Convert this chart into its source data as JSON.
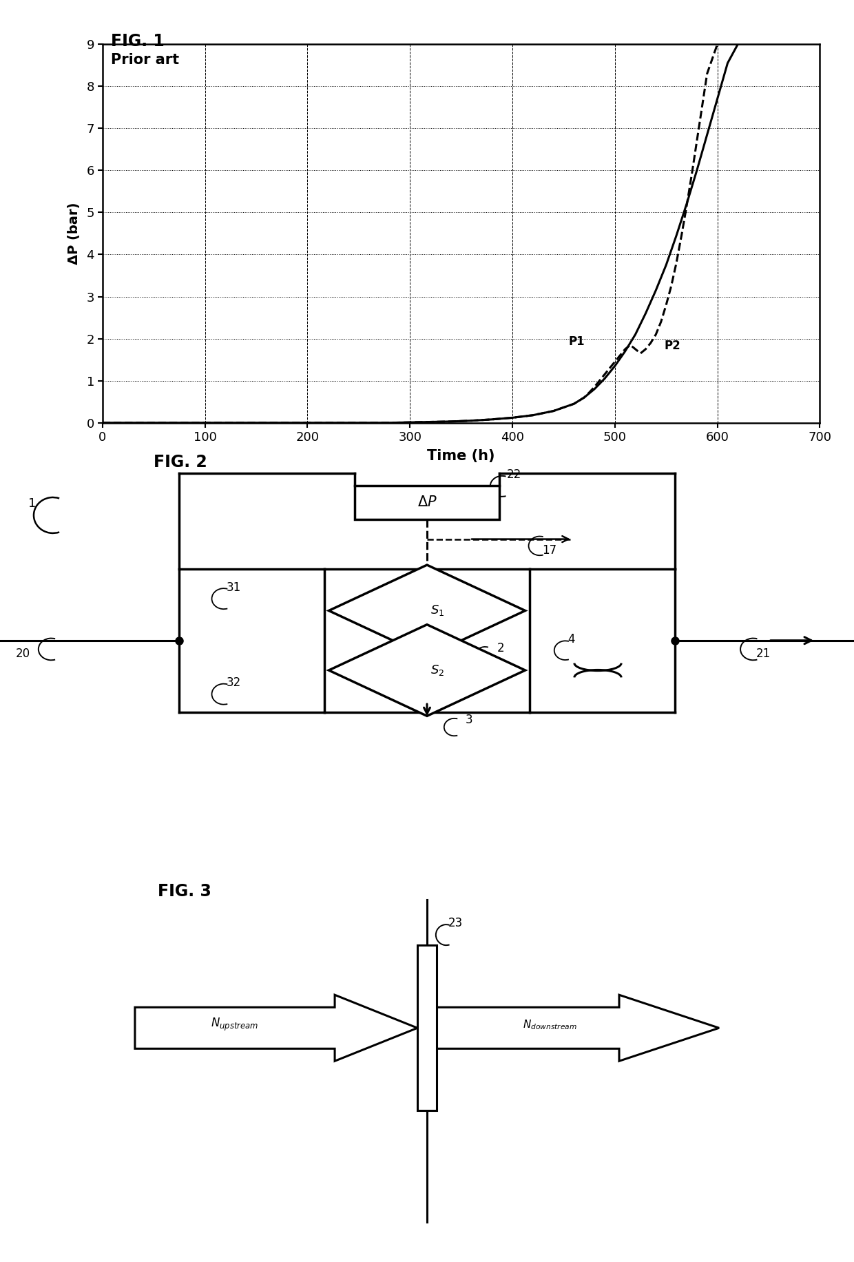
{
  "fig1_title": "FIG. 1",
  "fig1_subtitle": "Prior art",
  "fig1_xlabel": "Time (h)",
  "fig1_ylabel": "ΔP (bar)",
  "fig1_xlim": [
    0,
    700
  ],
  "fig1_ylim": [
    0,
    9
  ],
  "fig1_xticks": [
    0,
    100,
    200,
    300,
    400,
    500,
    600,
    700
  ],
  "fig1_yticks": [
    0,
    1,
    2,
    3,
    4,
    5,
    6,
    7,
    8,
    9
  ],
  "p1_x": [
    0,
    50,
    100,
    150,
    200,
    250,
    280,
    300,
    320,
    340,
    360,
    380,
    400,
    420,
    440,
    460,
    470,
    480,
    490,
    500,
    510,
    520,
    530,
    540,
    550,
    560,
    570,
    580,
    590,
    600,
    610,
    620,
    630,
    640,
    650,
    660
  ],
  "p1_y": [
    0.0,
    0.0,
    0.0,
    0.0,
    0.0,
    0.0,
    0.0,
    0.01,
    0.02,
    0.03,
    0.05,
    0.08,
    0.12,
    0.18,
    0.28,
    0.45,
    0.6,
    0.8,
    1.05,
    1.35,
    1.7,
    2.1,
    2.6,
    3.15,
    3.75,
    4.45,
    5.2,
    6.0,
    6.85,
    7.7,
    8.55,
    9.0,
    9.5,
    10.0,
    10.5,
    11.0
  ],
  "p2_x": [
    0,
    50,
    100,
    150,
    200,
    250,
    280,
    300,
    320,
    340,
    360,
    380,
    400,
    420,
    440,
    460,
    470,
    475,
    480,
    485,
    490,
    495,
    500,
    505,
    510,
    515,
    520,
    525,
    530,
    535,
    540,
    545,
    550,
    555,
    560,
    565,
    570,
    575,
    580,
    590,
    600,
    610,
    620,
    630,
    640,
    650,
    660
  ],
  "p2_y": [
    0.0,
    0.0,
    0.0,
    0.0,
    0.0,
    0.0,
    0.0,
    0.01,
    0.02,
    0.03,
    0.05,
    0.08,
    0.12,
    0.18,
    0.28,
    0.45,
    0.6,
    0.72,
    0.85,
    1.0,
    1.15,
    1.3,
    1.45,
    1.6,
    1.75,
    1.85,
    1.75,
    1.65,
    1.75,
    1.9,
    2.1,
    2.4,
    2.8,
    3.25,
    3.8,
    4.45,
    5.15,
    5.9,
    6.7,
    8.3,
    9.0,
    9.5,
    10.0,
    10.5,
    11.0,
    11.5,
    12.0
  ],
  "fig2_title": "FIG. 2",
  "fig3_title": "FIG. 3",
  "bg_color": "#ffffff",
  "line_color": "#000000"
}
